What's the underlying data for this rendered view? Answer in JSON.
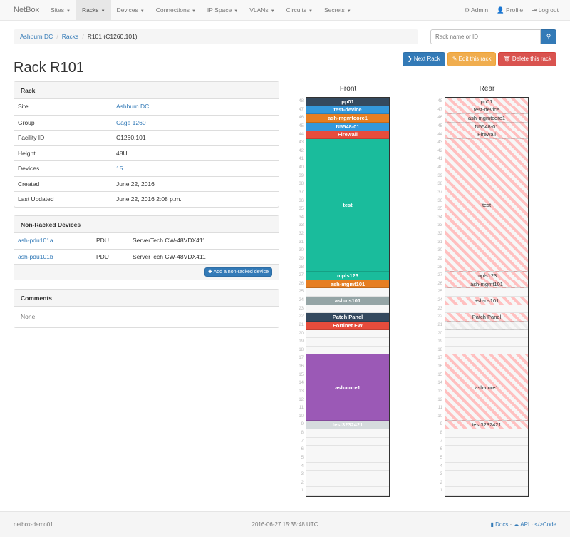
{
  "nav": {
    "brand": "NetBox",
    "items": [
      "Sites",
      "Racks",
      "Devices",
      "Connections",
      "IP Space",
      "VLANs",
      "Circuits",
      "Secrets"
    ],
    "active": "Racks",
    "right": [
      {
        "icon": "gear-icon",
        "label": "Admin"
      },
      {
        "icon": "user-icon",
        "label": "Profile"
      },
      {
        "icon": "logout-icon",
        "label": "Log out"
      }
    ]
  },
  "breadcrumb": [
    "Ashburn DC",
    "Racks",
    "R101 (C1260.101)"
  ],
  "search": {
    "placeholder": "Rack name or ID"
  },
  "actions": {
    "next": "Next Rack",
    "edit": "Edit this rack",
    "delete": "Delete this rack"
  },
  "title": "Rack R101",
  "rack_panel": {
    "heading": "Rack",
    "rows": [
      {
        "k": "Site",
        "v": "Ashburn DC",
        "link": true
      },
      {
        "k": "Group",
        "v": "Cage 1260",
        "link": true
      },
      {
        "k": "Facility ID",
        "v": "C1260.101",
        "link": false
      },
      {
        "k": "Height",
        "v": "48U",
        "link": false
      },
      {
        "k": "Devices",
        "v": "15",
        "link": true
      },
      {
        "k": "Created",
        "v": "June 22, 2016",
        "link": false
      },
      {
        "k": "Last Updated",
        "v": "June 22, 2016 2:08 p.m.",
        "link": false
      }
    ]
  },
  "nonracked": {
    "heading": "Non-Racked Devices",
    "rows": [
      {
        "name": "ash-pdu101a",
        "role": "PDU",
        "type": "ServerTech CW-48VDX411"
      },
      {
        "name": "ash-pdu101b",
        "role": "PDU",
        "type": "ServerTech CW-48VDX411"
      }
    ],
    "add_label": "Add a non-racked device"
  },
  "comments": {
    "heading": "Comments",
    "body": "None"
  },
  "rack": {
    "height_u": 48,
    "front_label": "Front",
    "rear_label": "Rear",
    "front": [
      {
        "name": "pp01",
        "top": 48,
        "u": 1,
        "color": "#34495e"
      },
      {
        "name": "test-device",
        "top": 47,
        "u": 1,
        "color": "#3498db"
      },
      {
        "name": "ash-mgmtcore1",
        "top": 46,
        "u": 1,
        "color": "#e67e22"
      },
      {
        "name": "N5548-01",
        "top": 45,
        "u": 1,
        "color": "#3498db"
      },
      {
        "name": "Firewall",
        "top": 44,
        "u": 1,
        "color": "#e74c3c"
      },
      {
        "name": "test",
        "top": 43,
        "u": 16,
        "color": "#1abc9c"
      },
      {
        "name": "mpls123",
        "top": 27,
        "u": 1,
        "color": "#1abc9c"
      },
      {
        "name": "ash-mgmt101",
        "top": 26,
        "u": 1,
        "color": "#e67e22"
      },
      {
        "name": "ash-cs101",
        "top": 24,
        "u": 1,
        "color": "#95a5a6"
      },
      {
        "name": "Patch Panel",
        "top": 22,
        "u": 1,
        "color": "#34495e"
      },
      {
        "name": "Fortinet FW",
        "top": 21,
        "u": 1,
        "color": "#e74c3c"
      },
      {
        "name": "ash-core1",
        "top": 17,
        "u": 8,
        "color": "#9b59b6"
      },
      {
        "name": "test3232421",
        "top": 9,
        "u": 1,
        "color": "#d5dbdd"
      }
    ],
    "rear": [
      {
        "name": "pp01",
        "top": 48,
        "u": 1
      },
      {
        "name": "test-device",
        "top": 47,
        "u": 1
      },
      {
        "name": "ash-mgmtcore1",
        "top": 46,
        "u": 1
      },
      {
        "name": "N5548-01",
        "top": 45,
        "u": 1
      },
      {
        "name": "Firewall",
        "top": 44,
        "u": 1
      },
      {
        "name": "test",
        "top": 43,
        "u": 16
      },
      {
        "name": "mpls123",
        "top": 27,
        "u": 1
      },
      {
        "name": "ash-mgmt101",
        "top": 26,
        "u": 1
      },
      {
        "name": "ash-cs101",
        "top": 24,
        "u": 1
      },
      {
        "name": "Patch Panel",
        "top": 22,
        "u": 1
      },
      {
        "name": "",
        "top": 21,
        "u": 1,
        "faint": true
      },
      {
        "name": "ash-core1",
        "top": 17,
        "u": 8
      },
      {
        "name": "test3232421",
        "top": 9,
        "u": 1
      }
    ]
  },
  "footer": {
    "host": "netbox-demo01",
    "time": "2016-06-27 15:35:48 UTC",
    "links": [
      "Docs",
      "API",
      "Code"
    ]
  }
}
